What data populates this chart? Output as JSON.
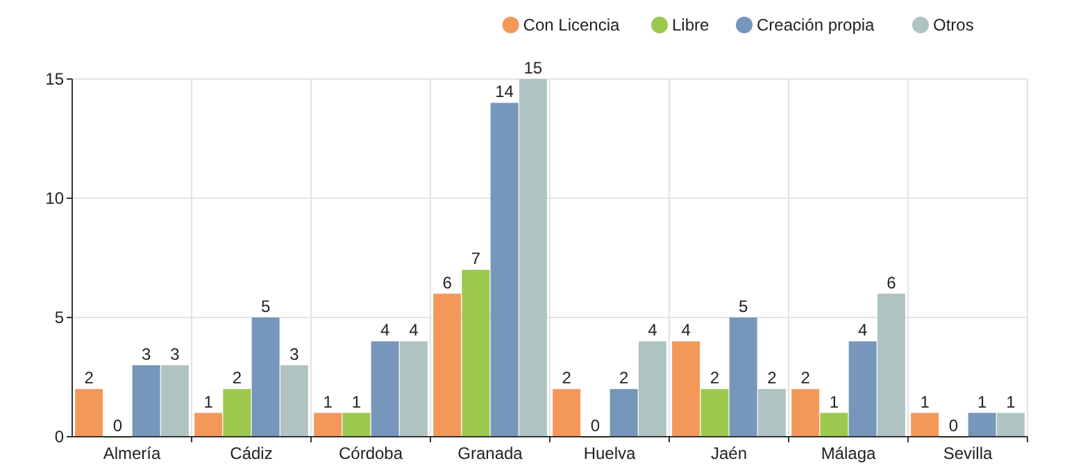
{
  "chart_data": {
    "type": "bar",
    "categories": [
      "Almería",
      "Cádiz",
      "Córdoba",
      "Granada",
      "Huelva",
      "Jaén",
      "Málaga",
      "Sevilla"
    ],
    "series": [
      {
        "name": "Con Licencia",
        "color": "#f4985a",
        "values": [
          2,
          1,
          1,
          6,
          2,
          4,
          2,
          1
        ]
      },
      {
        "name": "Libre",
        "color": "#9dc84e",
        "values": [
          0,
          2,
          1,
          7,
          0,
          2,
          1,
          0
        ]
      },
      {
        "name": "Creación propia",
        "color": "#7796bb",
        "values": [
          3,
          5,
          4,
          14,
          2,
          5,
          4,
          1
        ]
      },
      {
        "name": "Otros",
        "color": "#b0c3c3",
        "values": [
          3,
          3,
          4,
          15,
          4,
          2,
          6,
          1
        ]
      }
    ],
    "ylim": [
      0,
      15
    ],
    "yticks": [
      0,
      5,
      10,
      15
    ],
    "grid": true,
    "legend": "top right",
    "data_labels": true
  }
}
